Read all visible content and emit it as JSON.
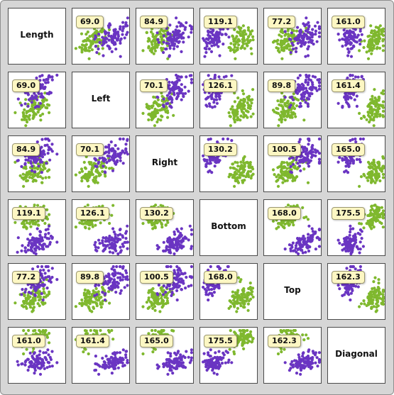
{
  "chart_data": {
    "type": "scatter",
    "variables": [
      "Length",
      "Left",
      "Right",
      "Bottom",
      "Top",
      "Diagonal"
    ],
    "series": [
      {
        "color": "#6a35c2"
      },
      {
        "color": "#7fb82e"
      }
    ],
    "pair_values": [
      [
        null,
        69.0,
        84.9,
        119.1,
        77.2,
        161.0
      ],
      [
        69.0,
        null,
        70.1,
        126.1,
        89.8,
        161.4
      ],
      [
        84.9,
        70.1,
        null,
        130.2,
        100.5,
        165.0
      ],
      [
        119.1,
        126.1,
        130.2,
        null,
        168.0,
        175.5
      ],
      [
        77.2,
        89.8,
        100.5,
        168.0,
        null,
        162.3
      ],
      [
        161.0,
        161.4,
        165.0,
        175.5,
        162.3,
        null
      ]
    ]
  }
}
